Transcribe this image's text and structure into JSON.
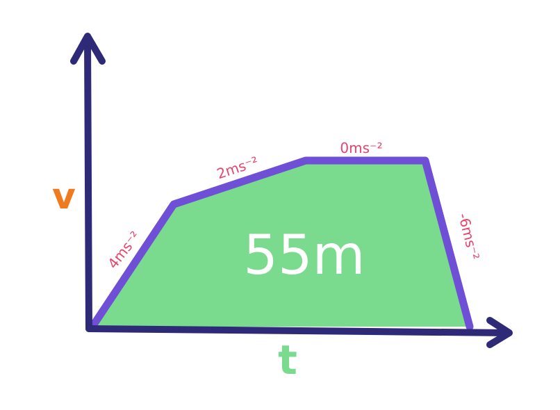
{
  "diagram": {
    "axis_y_label": "v",
    "axis_x_label": "t",
    "area_label": "55m",
    "segments": [
      {
        "label": "4ms⁻²"
      },
      {
        "label": "2ms⁻²"
      },
      {
        "label": "0ms⁻²"
      },
      {
        "label": "-6ms⁻²"
      }
    ]
  },
  "colors": {
    "axis": "#2e2a78",
    "outline": "#6f4fd6",
    "fill": "#7adb8e",
    "v_label": "#f07a1e",
    "t_label": "#7adb8e",
    "segment_label": "#e8436b",
    "area_label": "#ffffff"
  }
}
